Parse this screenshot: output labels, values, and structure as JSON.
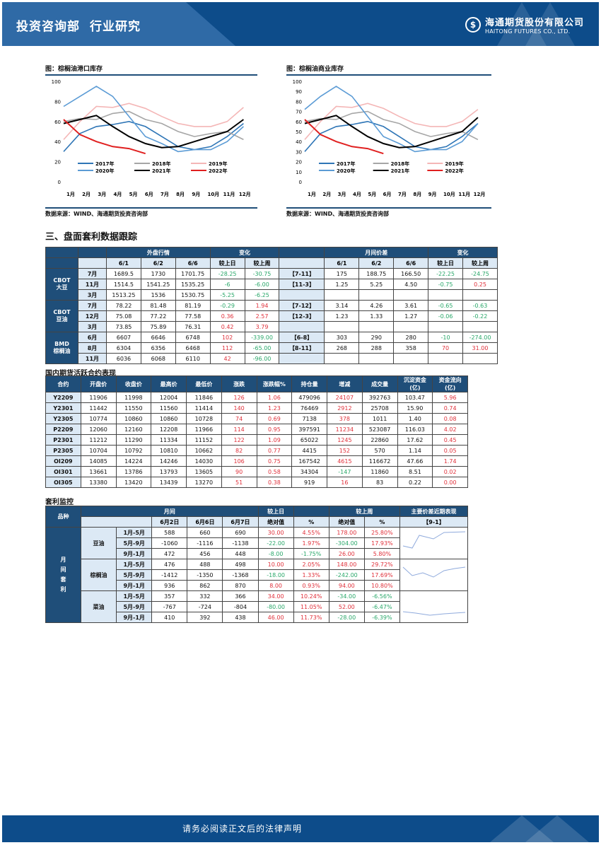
{
  "header": {
    "dept": "投资咨询部",
    "section": "行业研究",
    "logo_cn": "海通期货股份有限公司",
    "logo_en": "HAITONG FUTURES CO., LTD."
  },
  "footer": {
    "text": "请务必阅读正文后的法律声明"
  },
  "charts": {
    "left": {
      "title": "图：棕榈油港口库存",
      "source": "数据来源：WIND、海通期货投资咨询部"
    },
    "right": {
      "title": "图：棕榈油商业库存",
      "source": "数据来源：WIND、海通期货投资咨询部"
    }
  },
  "chart_data": [
    {
      "type": "line",
      "title": "棕榈油港口库存",
      "xlabel": "",
      "ylabel": "",
      "ylim": [
        0,
        100
      ],
      "yticks": [
        0,
        20,
        40,
        60,
        80,
        100
      ],
      "categories": [
        "1月",
        "2月",
        "3月",
        "4月",
        "5月",
        "6月",
        "7月",
        "8月",
        "9月",
        "10月",
        "11月",
        "12月"
      ],
      "legend": [
        "2017年",
        "2018年",
        "2019年",
        "2020年",
        "2021年",
        "2022年"
      ],
      "series": [
        {
          "name": "2017年",
          "color": "#2e75b6",
          "values": [
            30,
            48,
            55,
            57,
            60,
            55,
            45,
            35,
            32,
            35,
            45,
            58
          ]
        },
        {
          "name": "2018年",
          "color": "#a6a6a6",
          "values": [
            60,
            63,
            62,
            68,
            70,
            62,
            58,
            50,
            45,
            48,
            50,
            42
          ]
        },
        {
          "name": "2019年",
          "color": "#f4b6b6",
          "values": [
            42,
            60,
            75,
            74,
            78,
            73,
            65,
            58,
            55,
            55,
            60,
            74
          ]
        },
        {
          "name": "2020年",
          "color": "#5b9bd5",
          "values": [
            75,
            85,
            95,
            85,
            65,
            45,
            38,
            30,
            32,
            32,
            40,
            55
          ]
        },
        {
          "name": "2021年",
          "color": "#000000",
          "values": [
            58,
            62,
            66,
            55,
            45,
            38,
            34,
            35,
            40,
            45,
            50,
            62
          ]
        },
        {
          "name": "2022年",
          "color": "#e02020",
          "values": [
            62,
            47,
            40,
            35,
            33,
            28,
            null,
            null,
            null,
            null,
            null,
            null
          ]
        }
      ]
    },
    {
      "type": "line",
      "title": "棕榈油商业库存",
      "xlabel": "",
      "ylabel": "",
      "ylim": [
        0,
        100
      ],
      "yticks": [
        0,
        10,
        20,
        30,
        40,
        50,
        60,
        70,
        80,
        90,
        100
      ],
      "categories": [
        "1月",
        "2月",
        "3月",
        "4月",
        "5月",
        "6月",
        "7月",
        "8月",
        "9月",
        "10月",
        "11月",
        "12月"
      ],
      "legend": [
        "2017年",
        "2018年",
        "2019年",
        "2020年",
        "2021年",
        "2022年"
      ],
      "series": [
        {
          "name": "2017年",
          "color": "#2e75b6",
          "values": [
            30,
            48,
            55,
            57,
            60,
            55,
            45,
            35,
            32,
            35,
            45,
            58
          ]
        },
        {
          "name": "2018年",
          "color": "#a6a6a6",
          "values": [
            60,
            63,
            62,
            68,
            70,
            62,
            58,
            50,
            45,
            48,
            50,
            42
          ]
        },
        {
          "name": "2019年",
          "color": "#f4b6b6",
          "values": [
            42,
            60,
            75,
            74,
            78,
            73,
            65,
            58,
            55,
            55,
            60,
            72
          ]
        },
        {
          "name": "2020年",
          "color": "#5b9bd5",
          "values": [
            72,
            85,
            95,
            85,
            65,
            45,
            38,
            30,
            32,
            32,
            40,
            58
          ]
        },
        {
          "name": "2021年",
          "color": "#000000",
          "values": [
            58,
            62,
            66,
            55,
            45,
            38,
            34,
            35,
            40,
            45,
            50,
            64
          ]
        },
        {
          "name": "2022年",
          "color": "#e02020",
          "values": [
            62,
            47,
            40,
            35,
            33,
            28,
            null,
            null,
            null,
            null,
            null,
            null
          ]
        }
      ]
    }
  ],
  "section3": {
    "title": "三、盘面套利数据跟踪"
  },
  "t1": {
    "h_ext": "外盘行情",
    "h_chg": "变化",
    "h_spread": "月间价差",
    "h_chg2": "变化",
    "cols": [
      "6/1",
      "6/2",
      "6/6",
      "较上日",
      "较上周"
    ],
    "groups": [
      {
        "name": "CBOT\n大豆",
        "rows": [
          {
            "m": "7月",
            "v": [
              "1689.5",
              "1730",
              "1701.75"
            ],
            "d": [
              "-28.25",
              "-30.75"
            ],
            "dc": [
              "g",
              "g"
            ],
            "sp": "【7-11】",
            "sv": [
              "175",
              "188.75",
              "166.50"
            ],
            "sd": [
              "-22.25",
              "-24.75"
            ],
            "sdc": [
              "g",
              "g"
            ]
          },
          {
            "m": "11月",
            "v": [
              "1514.5",
              "1541.25",
              "1535.25"
            ],
            "d": [
              "-6",
              "-6.00"
            ],
            "dc": [
              "g",
              "g"
            ],
            "sp": "【11-3】",
            "sv": [
              "1.25",
              "5.25",
              "4.50"
            ],
            "sd": [
              "-0.75",
              "0.25"
            ],
            "sdc": [
              "g",
              "r"
            ]
          },
          {
            "m": "3月",
            "v": [
              "1513.25",
              "1536",
              "1530.75"
            ],
            "d": [
              "-5.25",
              "-6.25"
            ],
            "dc": [
              "g",
              "g"
            ],
            "sp": "",
            "sv": [
              "",
              "",
              ""
            ],
            "sd": [
              "",
              ""
            ],
            "sdc": [
              "",
              ""
            ]
          }
        ]
      },
      {
        "name": "CBOT\n豆油",
        "rows": [
          {
            "m": "7月",
            "v": [
              "78.22",
              "81.48",
              "81.19"
            ],
            "d": [
              "-0.29",
              "1.94"
            ],
            "dc": [
              "g",
              "r"
            ],
            "sp": "【7-12】",
            "sv": [
              "3.14",
              "4.26",
              "3.61"
            ],
            "sd": [
              "-0.65",
              "-0.63"
            ],
            "sdc": [
              "g",
              "g"
            ]
          },
          {
            "m": "12月",
            "v": [
              "75.08",
              "77.22",
              "77.58"
            ],
            "d": [
              "0.36",
              "2.57"
            ],
            "dc": [
              "r",
              "r"
            ],
            "sp": "【12-3】",
            "sv": [
              "1.23",
              "1.33",
              "1.27"
            ],
            "sd": [
              "-0.06",
              "-0.22"
            ],
            "sdc": [
              "g",
              "g"
            ]
          },
          {
            "m": "3月",
            "v": [
              "73.85",
              "75.89",
              "76.31"
            ],
            "d": [
              "0.42",
              "3.79"
            ],
            "dc": [
              "r",
              "r"
            ],
            "sp": "",
            "sv": [
              "",
              "",
              ""
            ],
            "sd": [
              "",
              ""
            ],
            "sdc": [
              "",
              ""
            ]
          }
        ]
      },
      {
        "name": "BMD\n棕榈油",
        "rows": [
          {
            "m": "6月",
            "v": [
              "6607",
              "6646",
              "6748"
            ],
            "d": [
              "102",
              "-339.00"
            ],
            "dc": [
              "r",
              "g"
            ],
            "sp": "【6-8】",
            "sv": [
              "303",
              "290",
              "280"
            ],
            "sd": [
              "-10",
              "-274.00"
            ],
            "sdc": [
              "g",
              "g"
            ]
          },
          {
            "m": "8月",
            "v": [
              "6304",
              "6356",
              "6468"
            ],
            "d": [
              "112",
              "-65.00"
            ],
            "dc": [
              "r",
              "g"
            ],
            "sp": "【8-11】",
            "sv": [
              "268",
              "288",
              "358"
            ],
            "sd": [
              "70",
              "31.00"
            ],
            "sdc": [
              "r",
              "r"
            ]
          },
          {
            "m": "11月",
            "v": [
              "6036",
              "6068",
              "6110"
            ],
            "d": [
              "42",
              "-96.00"
            ],
            "dc": [
              "r",
              "g"
            ],
            "sp": "",
            "sv": [
              "",
              "",
              ""
            ],
            "sd": [
              "",
              ""
            ],
            "sdc": [
              "",
              ""
            ]
          }
        ]
      }
    ]
  },
  "t2": {
    "caption": "国内期货活跃合约表现",
    "headers": [
      "合约",
      "开盘价",
      "收盘价",
      "最高价",
      "最低价",
      "涨跌",
      "涨跌幅%",
      "持仓量",
      "增减",
      "成交量",
      "沉淀资金(亿)",
      "资金流向(亿)"
    ],
    "rows": [
      [
        "Y2209",
        "11906",
        "11998",
        "12004",
        "11846",
        "126",
        "1.06",
        "479096",
        "24107",
        "392763",
        "103.47",
        "5.96"
      ],
      [
        "Y2301",
        "11442",
        "11550",
        "11560",
        "11414",
        "140",
        "1.23",
        "76469",
        "2912",
        "25708",
        "15.90",
        "0.74"
      ],
      [
        "Y2305",
        "10774",
        "10860",
        "10860",
        "10728",
        "74",
        "0.69",
        "7138",
        "378",
        "1011",
        "1.40",
        "0.08"
      ],
      [
        "P2209",
        "12060",
        "12160",
        "12208",
        "11966",
        "114",
        "0.95",
        "397591",
        "11234",
        "523087",
        "116.03",
        "4.02"
      ],
      [
        "P2301",
        "11212",
        "11290",
        "11334",
        "11152",
        "122",
        "1.09",
        "65022",
        "1245",
        "22860",
        "17.62",
        "0.45"
      ],
      [
        "P2305",
        "10704",
        "10792",
        "10810",
        "10662",
        "82",
        "0.77",
        "4415",
        "152",
        "570",
        "1.14",
        "0.05"
      ],
      [
        "OI209",
        "14085",
        "14224",
        "14246",
        "14030",
        "106",
        "0.75",
        "167542",
        "4615",
        "116672",
        "47.66",
        "1.74"
      ],
      [
        "OI301",
        "13661",
        "13786",
        "13793",
        "13605",
        "90",
        "0.58",
        "34304",
        "-147",
        "11860",
        "8.51",
        "0.02"
      ],
      [
        "OI305",
        "13380",
        "13420",
        "13439",
        "13270",
        "51",
        "0.38",
        "919",
        "16",
        "83",
        "0.22",
        "0.00"
      ]
    ]
  },
  "t3": {
    "caption": "套利监控",
    "h_variety": "品种",
    "h_spread": "月间",
    "h_day": "较上日",
    "h_week": "较上周",
    "h_trend": "主要价差近期表现",
    "trend_label": "【9-1】",
    "cols": [
      "6月2日",
      "6月6日",
      "6月7日",
      "绝对值",
      "%",
      "绝对值",
      "%"
    ],
    "side": "月间套利",
    "groups": [
      {
        "name": "豆油",
        "rows": [
          {
            "p": "1月-5月",
            "v": [
              "588",
              "660",
              "690",
              "30.00",
              "4.55%",
              "178.00",
              "25.80%"
            ],
            "c": [
              "",
              "",
              "",
              "r",
              "r",
              "r",
              "r"
            ]
          },
          {
            "p": "5月-9月",
            "v": [
              "-1060",
              "-1116",
              "-1138",
              "-22.00",
              "1.97%",
              "-304.00",
              "17.93%"
            ],
            "c": [
              "",
              "",
              "",
              "g",
              "r",
              "g",
              "r"
            ]
          },
          {
            "p": "9月-1月",
            "v": [
              "472",
              "456",
              "448",
              "-8.00",
              "-1.75%",
              "26.00",
              "5.80%"
            ],
            "c": [
              "",
              "",
              "",
              "g",
              "g",
              "r",
              "r"
            ]
          }
        ]
      },
      {
        "name": "棕榈油",
        "rows": [
          {
            "p": "1月-5月",
            "v": [
              "476",
              "488",
              "498",
              "10.00",
              "2.05%",
              "148.00",
              "29.72%"
            ],
            "c": [
              "",
              "",
              "",
              "r",
              "r",
              "r",
              "r"
            ]
          },
          {
            "p": "5月-9月",
            "v": [
              "-1412",
              "-1350",
              "-1368",
              "-18.00",
              "1.33%",
              "-242.00",
              "17.69%"
            ],
            "c": [
              "",
              "",
              "",
              "g",
              "r",
              "g",
              "r"
            ]
          },
          {
            "p": "9月-1月",
            "v": [
              "936",
              "862",
              "870",
              "8.00",
              "0.93%",
              "94.00",
              "10.80%"
            ],
            "c": [
              "",
              "",
              "",
              "r",
              "r",
              "r",
              "r"
            ]
          }
        ]
      },
      {
        "name": "菜油",
        "rows": [
          {
            "p": "1月-5月",
            "v": [
              "357",
              "332",
              "366",
              "34.00",
              "10.24%",
              "-34.00",
              "-6.56%"
            ],
            "c": [
              "",
              "",
              "",
              "r",
              "r",
              "g",
              "g"
            ]
          },
          {
            "p": "5月-9月",
            "v": [
              "-767",
              "-724",
              "-804",
              "-80.00",
              "11.05%",
              "52.00",
              "-6.47%"
            ],
            "c": [
              "",
              "",
              "",
              "g",
              "r",
              "r",
              "g"
            ]
          },
          {
            "p": "9月-1月",
            "v": [
              "410",
              "392",
              "438",
              "46.00",
              "11.73%",
              "-28.00",
              "-6.39%"
            ],
            "c": [
              "",
              "",
              "",
              "r",
              "r",
              "g",
              "g"
            ]
          }
        ]
      }
    ]
  }
}
